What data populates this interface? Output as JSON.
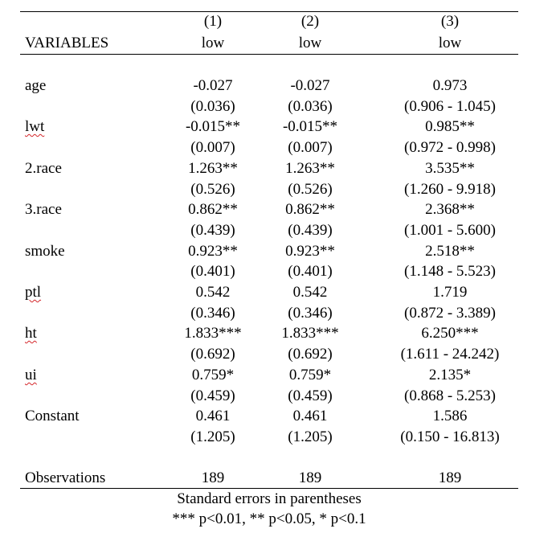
{
  "header": {
    "col_numbers": [
      "(1)",
      "(2)",
      "(3)"
    ],
    "variables_label": "VARIABLES",
    "dep_vars": [
      "low",
      "low",
      "low"
    ]
  },
  "rows": [
    {
      "label": "age",
      "spell_flag": false,
      "est": [
        "-0.027",
        "-0.027",
        "0.973"
      ],
      "se": [
        "(0.036)",
        "(0.036)",
        "(0.906 - 1.045)"
      ]
    },
    {
      "label": "lwt",
      "spell_flag": true,
      "est": [
        "-0.015**",
        "-0.015**",
        "0.985**"
      ],
      "se": [
        "(0.007)",
        "(0.007)",
        "(0.972 - 0.998)"
      ]
    },
    {
      "label": "2.race",
      "spell_flag": false,
      "est": [
        "1.263**",
        "1.263**",
        "3.535**"
      ],
      "se": [
        "(0.526)",
        "(0.526)",
        "(1.260 - 9.918)"
      ]
    },
    {
      "label": "3.race",
      "spell_flag": false,
      "est": [
        "0.862**",
        "0.862**",
        "2.368**"
      ],
      "se": [
        "(0.439)",
        "(0.439)",
        "(1.001 - 5.600)"
      ]
    },
    {
      "label": "smoke",
      "spell_flag": false,
      "est": [
        "0.923**",
        "0.923**",
        "2.518**"
      ],
      "se": [
        "(0.401)",
        "(0.401)",
        "(1.148 - 5.523)"
      ]
    },
    {
      "label": "ptl",
      "spell_flag": true,
      "est": [
        "0.542",
        "0.542",
        "1.719"
      ],
      "se": [
        "(0.346)",
        "(0.346)",
        "(0.872 - 3.389)"
      ]
    },
    {
      "label": "ht",
      "spell_flag": true,
      "est": [
        "1.833***",
        "1.833***",
        "6.250***"
      ],
      "se": [
        "(0.692)",
        "(0.692)",
        "(1.611 - 24.242)"
      ]
    },
    {
      "label": "ui",
      "spell_flag": true,
      "est": [
        "0.759*",
        "0.759*",
        "2.135*"
      ],
      "se": [
        "(0.459)",
        "(0.459)",
        "(0.868 - 5.253)"
      ]
    },
    {
      "label": "Constant",
      "spell_flag": false,
      "est": [
        "0.461",
        "0.461",
        "1.586"
      ],
      "se": [
        "(1.205)",
        "(1.205)",
        "(0.150 - 16.813)"
      ]
    }
  ],
  "observations": {
    "label": "Observations",
    "values": [
      "189",
      "189",
      "189"
    ]
  },
  "notes": {
    "line1": "Standard errors in parentheses",
    "line2": "*** p<0.01, ** p<0.05, * p<0.1"
  }
}
